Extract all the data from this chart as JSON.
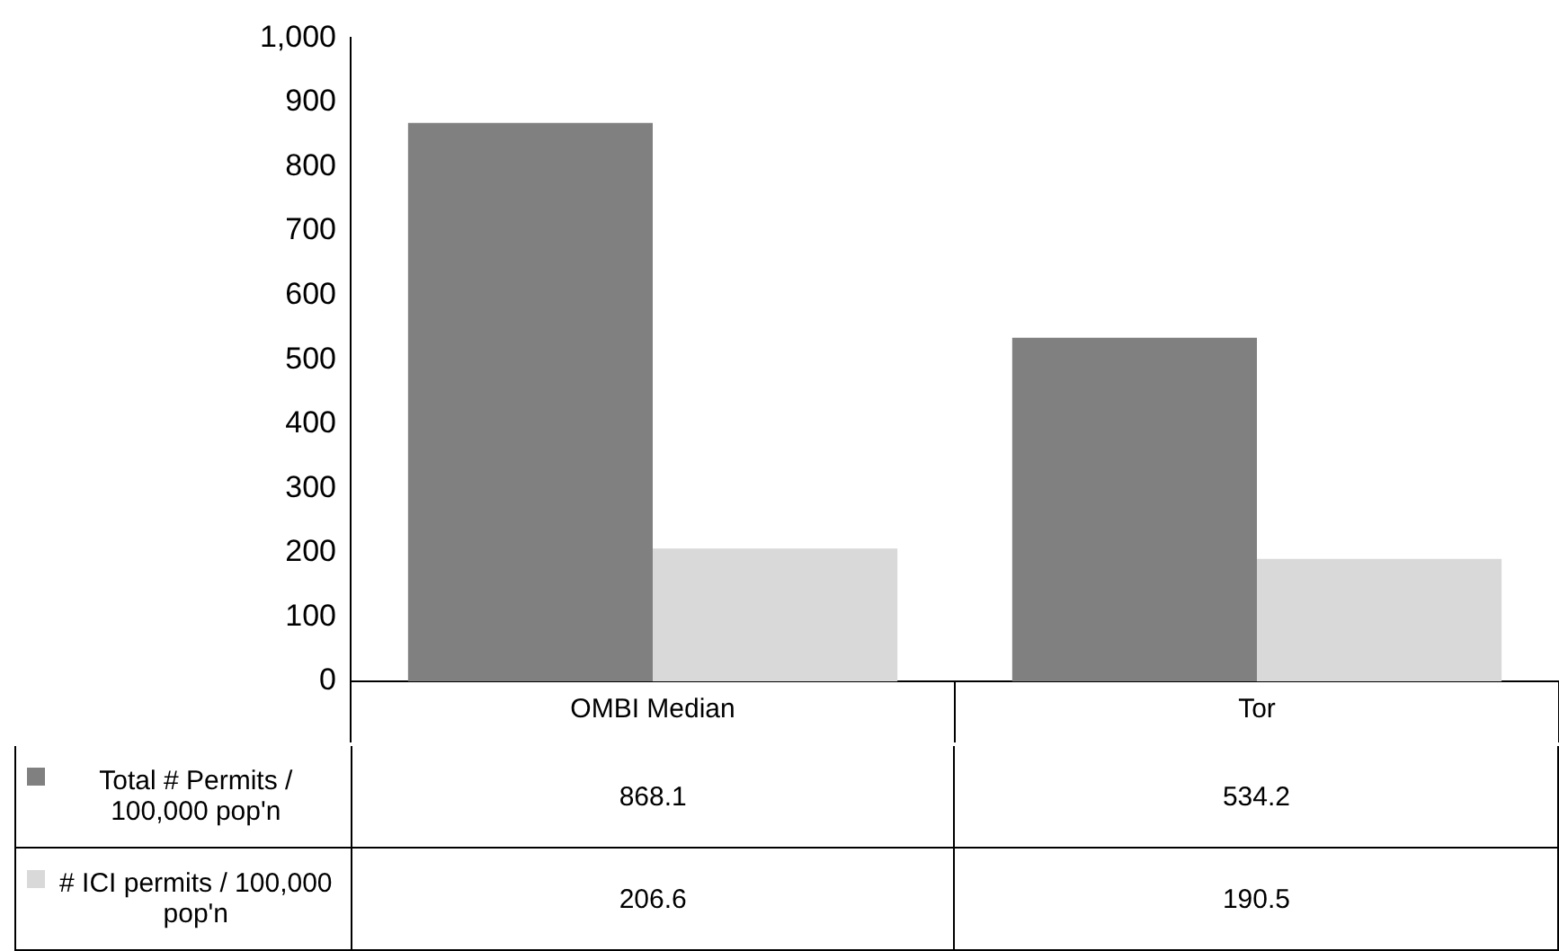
{
  "chart_data": {
    "type": "bar",
    "categories": [
      "OMBI Median",
      "Tor"
    ],
    "series": [
      {
        "name": "Total # Permits / 100,000 pop'n",
        "color": "#808080",
        "values": [
          868.1,
          534.2
        ]
      },
      {
        "name": "# ICI permits / 100,000 pop'n",
        "color": "#d9d9d9",
        "values": [
          206.6,
          190.5
        ]
      }
    ],
    "ylim": [
      0,
      1000
    ],
    "yticks": [
      0,
      100,
      200,
      300,
      400,
      500,
      600,
      700,
      800,
      900,
      {
        "value": 1000,
        "label": "1,000"
      }
    ],
    "grid": false,
    "legend": "bottom",
    "data_labels": true
  }
}
